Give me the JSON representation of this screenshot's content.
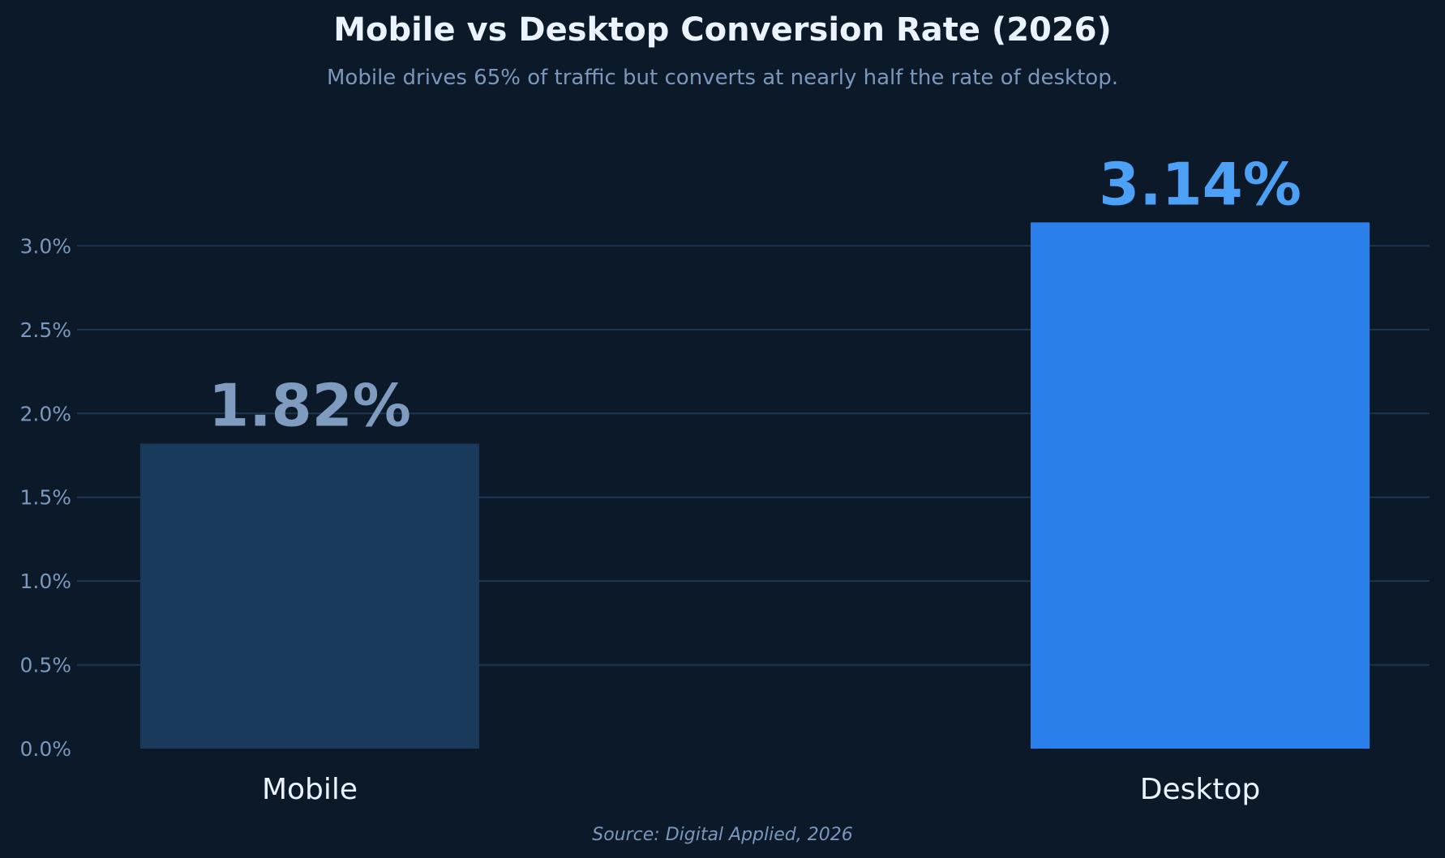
{
  "chart_data": {
    "type": "bar",
    "title": "Mobile vs Desktop Conversion Rate (2026)",
    "subtitle": "Mobile drives 65% of traffic but converts at nearly half the rate of desktop.",
    "source": "Source: Digital Applied, 2026",
    "categories": [
      "Mobile",
      "Desktop"
    ],
    "values": [
      1.82,
      3.14
    ],
    "value_labels": [
      "1.82%",
      "3.14%"
    ],
    "bar_colors": [
      "#1a3a5c",
      "#2a7fea"
    ],
    "value_label_colors": [
      "#7f9cc0",
      "#4ca1f7"
    ],
    "ylim": [
      0,
      3.5
    ],
    "yticks": [
      0.0,
      0.5,
      1.0,
      1.5,
      2.0,
      2.5,
      3.0
    ],
    "ytick_labels": [
      "0.0%",
      "0.5%",
      "1.0%",
      "1.5%",
      "2.0%",
      "2.5%",
      "3.0%"
    ],
    "grid": true,
    "xlabel": "",
    "ylabel": ""
  },
  "colors": {
    "background": "#0c1929",
    "title": "#eaf3ff",
    "subtitle": "#7a98bd",
    "tick": "#7a98bd",
    "category": "#eaf3ff",
    "grid": "#1e3652",
    "source": "#7a98bd"
  }
}
